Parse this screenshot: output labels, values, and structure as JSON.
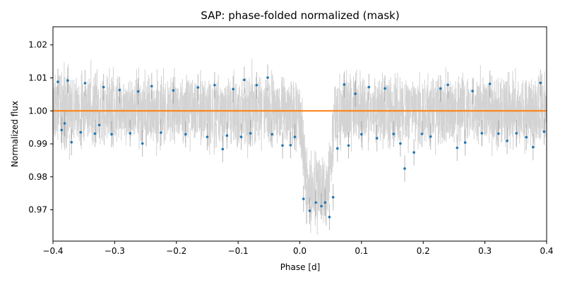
{
  "chart_data": {
    "type": "scatter",
    "title": "SAP: phase-folded normalized (mask)",
    "xlabel": "Phase [d]",
    "ylabel": "Normalized flux",
    "xlim": [
      -0.4,
      0.4
    ],
    "ylim": [
      0.9605,
      1.0255
    ],
    "x_ticks": [
      "−0.4",
      "−0.3",
      "−0.2",
      "−0.1",
      "0.0",
      "0.1",
      "0.2",
      "0.3",
      "0.4"
    ],
    "x_tick_values": [
      -0.4,
      -0.3,
      -0.2,
      -0.1,
      0.0,
      0.1,
      0.2,
      0.3,
      0.4
    ],
    "y_ticks": [
      "0.97",
      "0.98",
      "0.99",
      "1.00",
      "1.01",
      "1.02"
    ],
    "y_tick_values": [
      0.97,
      0.98,
      0.99,
      1.0,
      1.01,
      1.02
    ],
    "grid": false,
    "series": [
      {
        "kind": "scatter-with-errorbars",
        "marker_color": "#1f77b4",
        "errorbar_color": "#808080",
        "baseline": 1.0,
        "baseline_scatter": 0.0033,
        "typical_error": 0.004,
        "transit": {
          "start": 0.0,
          "end": 0.057,
          "depth": 0.025
        },
        "highlighted_points": [
          {
            "x": -0.392,
            "y": 1.0088
          },
          {
            "x": -0.386,
            "y": 0.9942
          },
          {
            "x": -0.381,
            "y": 0.9962
          },
          {
            "x": -0.376,
            "y": 1.0092
          },
          {
            "x": -0.37,
            "y": 0.9905
          },
          {
            "x": -0.355,
            "y": 0.9935
          },
          {
            "x": -0.348,
            "y": 1.0084
          },
          {
            "x": -0.332,
            "y": 0.9931
          },
          {
            "x": -0.325,
            "y": 0.9957
          },
          {
            "x": -0.318,
            "y": 1.0072
          },
          {
            "x": -0.305,
            "y": 0.9929
          },
          {
            "x": -0.292,
            "y": 1.0063
          },
          {
            "x": -0.275,
            "y": 0.9932
          },
          {
            "x": -0.262,
            "y": 1.0059
          },
          {
            "x": -0.255,
            "y": 0.9901
          },
          {
            "x": -0.24,
            "y": 1.0075
          },
          {
            "x": -0.225,
            "y": 0.9934
          },
          {
            "x": -0.205,
            "y": 1.0062
          },
          {
            "x": -0.185,
            "y": 0.9929
          },
          {
            "x": -0.165,
            "y": 1.0071
          },
          {
            "x": -0.15,
            "y": 0.9921
          },
          {
            "x": -0.138,
            "y": 1.0078
          },
          {
            "x": -0.125,
            "y": 0.9884
          },
          {
            "x": -0.118,
            "y": 0.9925
          },
          {
            "x": -0.108,
            "y": 1.0066
          },
          {
            "x": -0.095,
            "y": 0.9921
          },
          {
            "x": -0.09,
            "y": 1.0094
          },
          {
            "x": -0.08,
            "y": 0.9932
          },
          {
            "x": -0.07,
            "y": 1.0078
          },
          {
            "x": -0.052,
            "y": 1.0101
          },
          {
            "x": -0.045,
            "y": 0.9929
          },
          {
            "x": -0.028,
            "y": 0.9895
          },
          {
            "x": -0.015,
            "y": 0.9896
          },
          {
            "x": -0.008,
            "y": 0.9921
          },
          {
            "x": 0.006,
            "y": 0.9733
          },
          {
            "x": 0.016,
            "y": 0.9697
          },
          {
            "x": 0.026,
            "y": 0.9722
          },
          {
            "x": 0.035,
            "y": 0.9711
          },
          {
            "x": 0.041,
            "y": 0.9722
          },
          {
            "x": 0.048,
            "y": 0.9678
          },
          {
            "x": 0.054,
            "y": 0.9738
          },
          {
            "x": 0.061,
            "y": 0.9886
          },
          {
            "x": 0.072,
            "y": 1.008
          },
          {
            "x": 0.079,
            "y": 0.9895
          },
          {
            "x": 0.09,
            "y": 1.0052
          },
          {
            "x": 0.1,
            "y": 0.9929
          },
          {
            "x": 0.112,
            "y": 1.0072
          },
          {
            "x": 0.125,
            "y": 0.9917
          },
          {
            "x": 0.138,
            "y": 1.0068
          },
          {
            "x": 0.152,
            "y": 0.993
          },
          {
            "x": 0.163,
            "y": 0.9901
          },
          {
            "x": 0.17,
            "y": 0.9825
          },
          {
            "x": 0.185,
            "y": 0.9874
          },
          {
            "x": 0.198,
            "y": 0.993
          },
          {
            "x": 0.212,
            "y": 0.9922
          },
          {
            "x": 0.228,
            "y": 1.0068
          },
          {
            "x": 0.24,
            "y": 1.0079
          },
          {
            "x": 0.255,
            "y": 0.9888
          },
          {
            "x": 0.268,
            "y": 0.9904
          },
          {
            "x": 0.28,
            "y": 1.006
          },
          {
            "x": 0.295,
            "y": 0.9932
          },
          {
            "x": 0.308,
            "y": 1.0082
          },
          {
            "x": 0.322,
            "y": 0.9931
          },
          {
            "x": 0.336,
            "y": 0.9909
          },
          {
            "x": 0.351,
            "y": 0.9932
          },
          {
            "x": 0.367,
            "y": 0.992
          },
          {
            "x": 0.378,
            "y": 0.989
          },
          {
            "x": 0.39,
            "y": 1.0085
          },
          {
            "x": 0.396,
            "y": 0.9937
          }
        ]
      },
      {
        "kind": "line",
        "color": "#ff7f0e",
        "x": [
          -0.4,
          0.4
        ],
        "y": [
          1.0,
          1.0
        ]
      }
    ]
  }
}
